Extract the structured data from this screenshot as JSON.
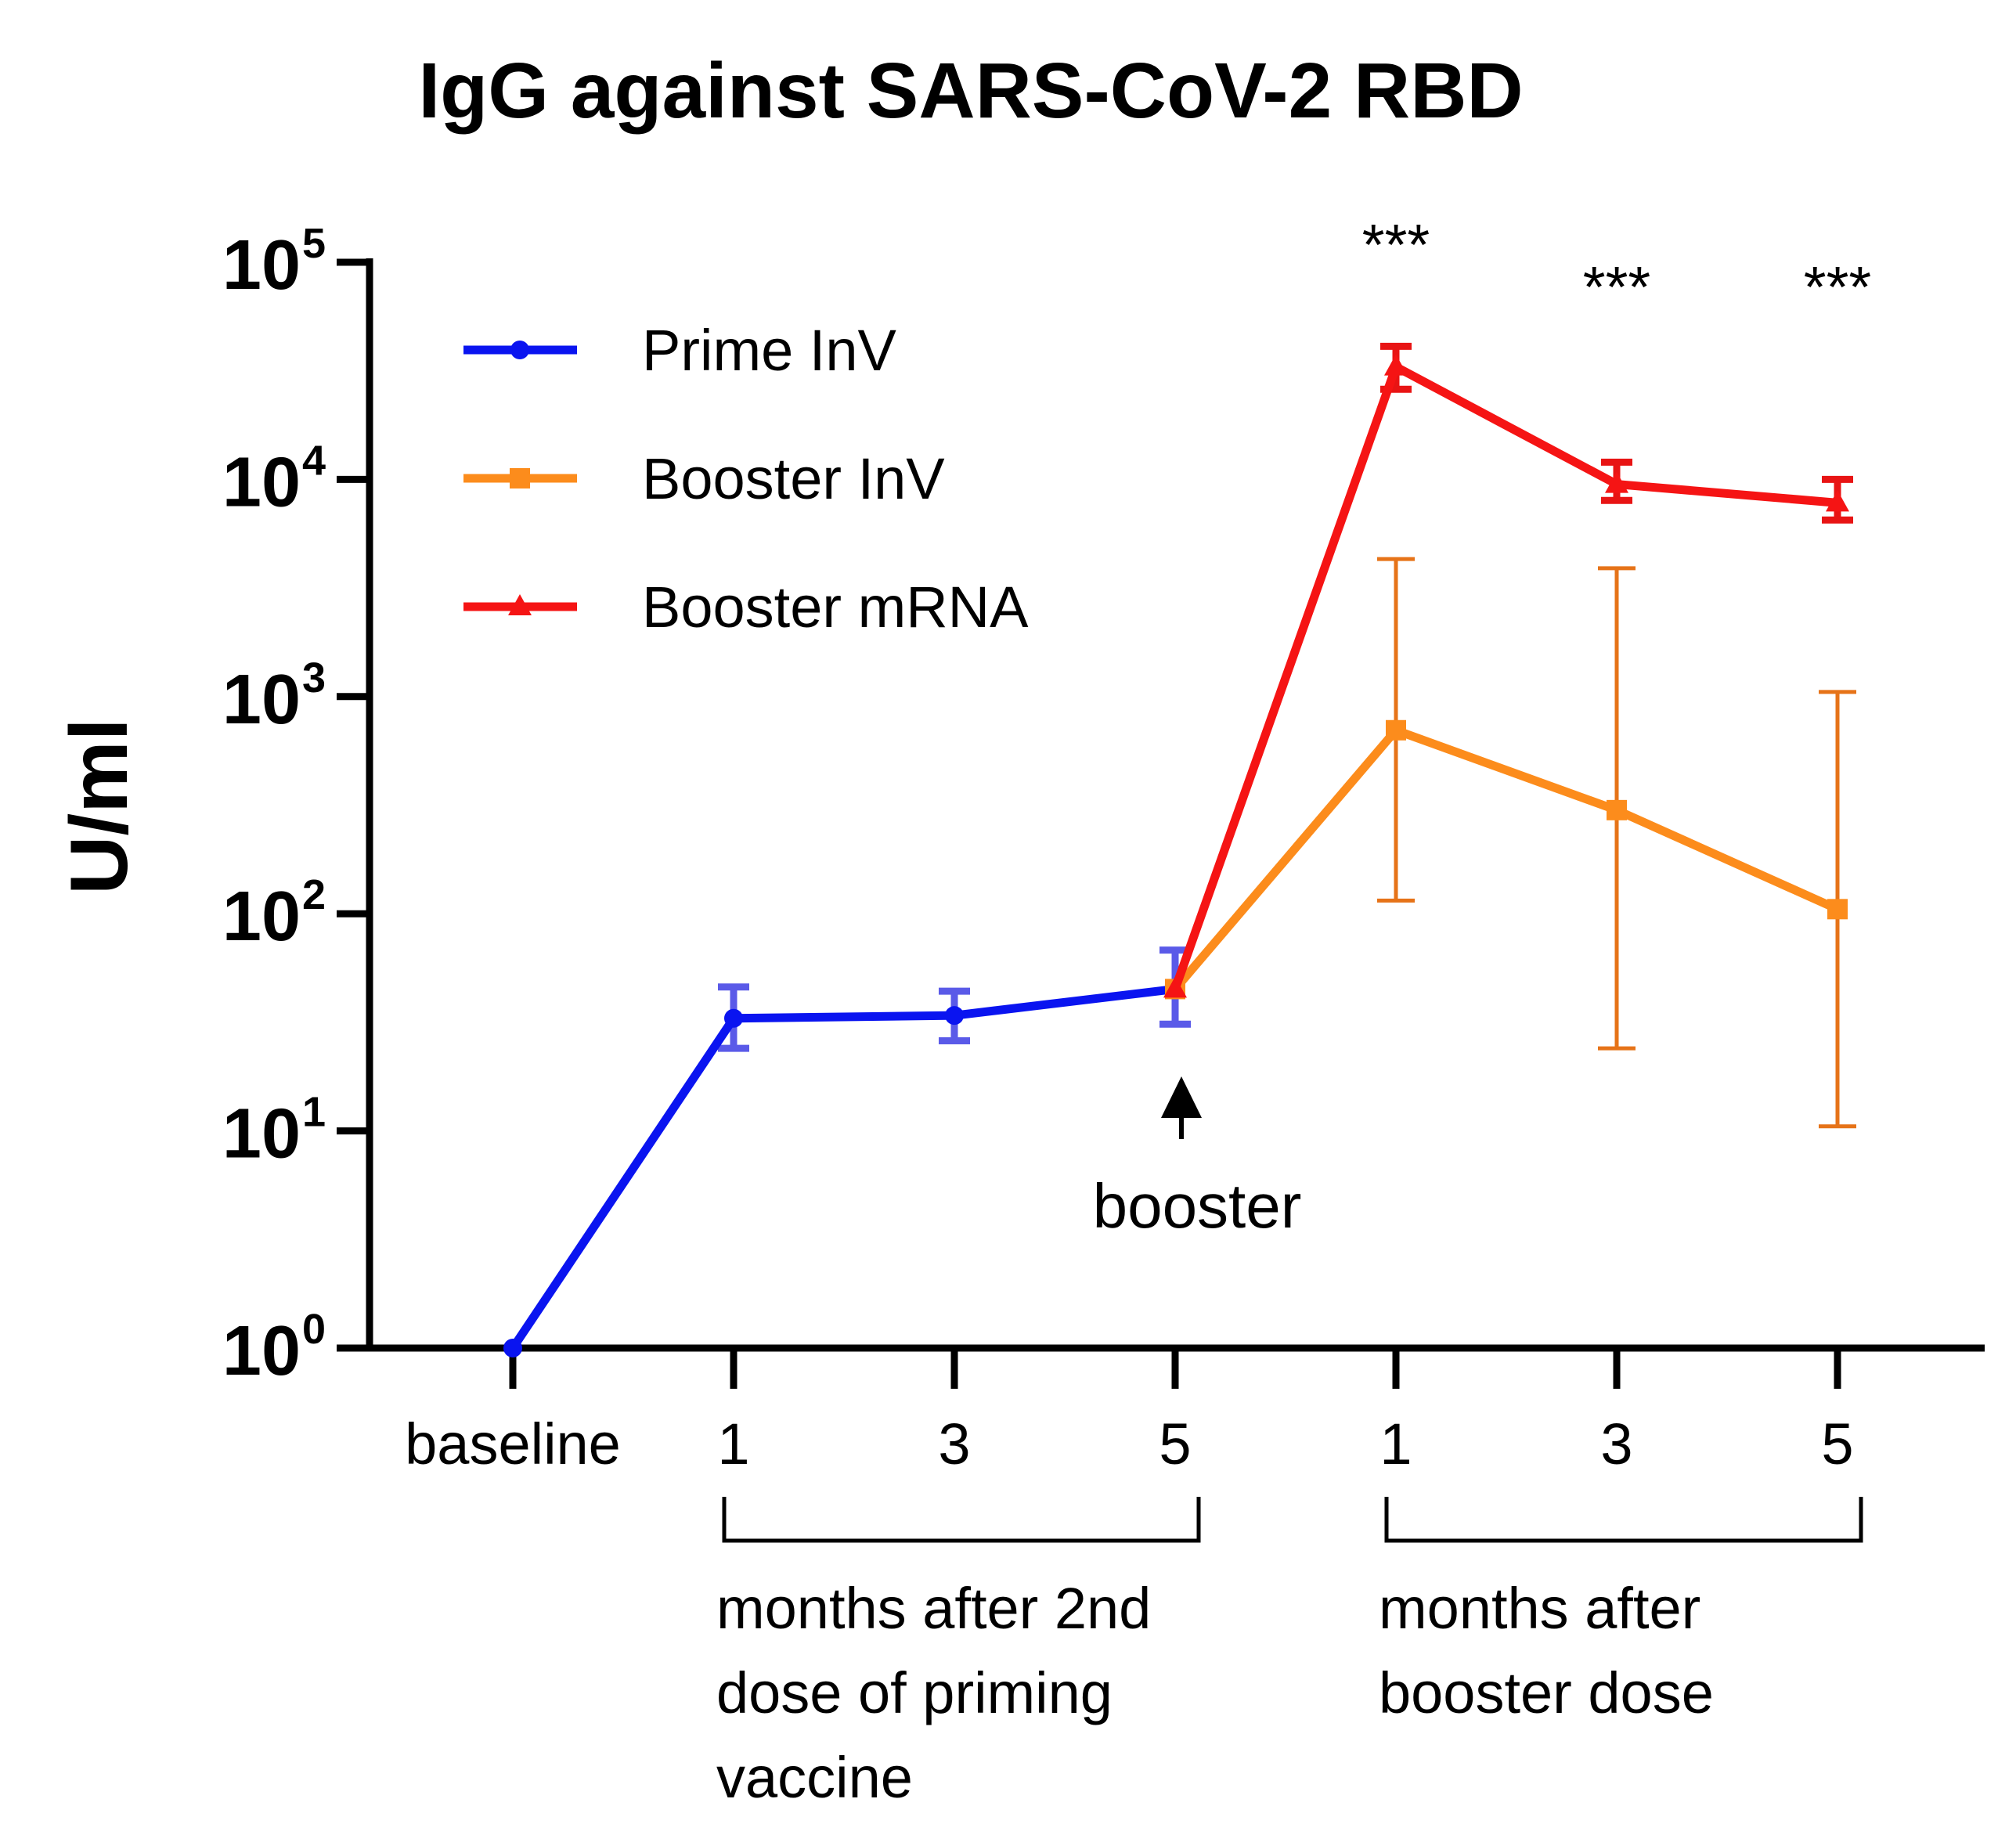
{
  "chart_data": {
    "type": "line",
    "title": "IgG against SARS-CoV-2 RBD",
    "ylabel": "U/ml",
    "xlabel": "",
    "yscale": "log",
    "ylim": [
      1,
      100000
    ],
    "yticks": [
      {
        "base": "10",
        "exp": "0",
        "value": 1
      },
      {
        "base": "10",
        "exp": "1",
        "value": 10
      },
      {
        "base": "10",
        "exp": "2",
        "value": 100
      },
      {
        "base": "10",
        "exp": "3",
        "value": 1000
      },
      {
        "base": "10",
        "exp": "4",
        "value": 10000
      },
      {
        "base": "10",
        "exp": "5",
        "value": 100000
      }
    ],
    "categories": [
      "baseline",
      "1",
      "3",
      "5",
      "1",
      "3",
      "5"
    ],
    "groups": [
      {
        "lines": [
          "months after 2nd",
          "dose of priming",
          "vaccine"
        ],
        "from": 1,
        "to": 3
      },
      {
        "lines": [
          "months after",
          "booster dose"
        ],
        "from": 4,
        "to": 6
      }
    ],
    "series": [
      {
        "name": "Prime InV",
        "color": "#0a14f0",
        "errcolor": "#5a5ae8",
        "marker": "circle",
        "points": [
          {
            "x": 0,
            "y": 1
          },
          {
            "x": 1,
            "y": 33,
            "lo": 24,
            "hi": 46
          },
          {
            "x": 2,
            "y": 34,
            "lo": 26,
            "hi": 44
          },
          {
            "x": 3,
            "y": 45,
            "lo": 31,
            "hi": 68
          }
        ]
      },
      {
        "name": "Booster InV",
        "color": "#fc8c1c",
        "errcolor": "#e67318",
        "marker": "square",
        "points": [
          {
            "x": 3,
            "y": 45
          },
          {
            "x": 4,
            "y": 700,
            "lo": 115,
            "hi": 4300
          },
          {
            "x": 5,
            "y": 300,
            "lo": 24,
            "hi": 3900
          },
          {
            "x": 6,
            "y": 105,
            "lo": 10.5,
            "hi": 1050
          }
        ]
      },
      {
        "name": "Booster mRNA",
        "color": "#f51414",
        "errcolor": "#e81414",
        "marker": "triangle",
        "points": [
          {
            "x": 3,
            "y": 45
          },
          {
            "x": 4,
            "y": 33000,
            "lo": 26000,
            "hi": 41000
          },
          {
            "x": 5,
            "y": 9500,
            "lo": 8000,
            "hi": 12000
          },
          {
            "x": 6,
            "y": 7800,
            "lo": 6500,
            "hi": 10000
          }
        ]
      }
    ],
    "significance": [
      {
        "x": 4,
        "label": "***"
      },
      {
        "x": 5,
        "label": "***"
      },
      {
        "x": 6,
        "label": "***"
      }
    ],
    "annotation": {
      "x": 3,
      "label": "booster"
    }
  }
}
